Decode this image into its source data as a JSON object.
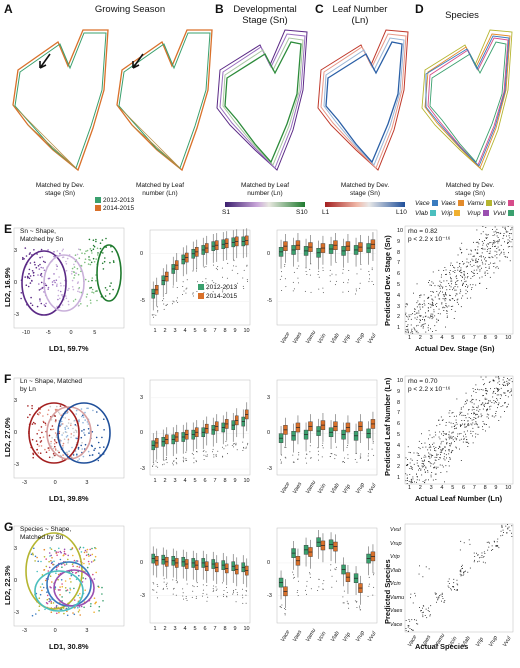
{
  "panels": {
    "A": {
      "letter": "A",
      "title": "Growing Season",
      "caption_left": "Matched by Dev. stage (Sn)",
      "caption_right": "Matched by Leaf number (Ln)",
      "legend": [
        {
          "label": "2012-2013",
          "color": "#3aa06e"
        },
        {
          "label": "2014-2015",
          "color": "#d9702a"
        }
      ]
    },
    "B": {
      "letter": "B",
      "title": "Developmental Stage (Sn)",
      "caption": "Matched by Leaf number (Ln)",
      "scale_left": "S1",
      "scale_right": "S10"
    },
    "C": {
      "letter": "C",
      "title": "Leaf Number (Ln)",
      "caption": "Matched by Dev. stage (Sn)",
      "scale_left": "L1",
      "scale_right": "L10"
    },
    "D": {
      "letter": "D",
      "title": "Species",
      "caption": "Matched by Dev. stage (Sn)",
      "legend": [
        {
          "label": "Vace",
          "color": "#3a7bbf"
        },
        {
          "label": "Vaes",
          "color": "#e28a2b"
        },
        {
          "label": "Vamu",
          "color": "#b5b530"
        },
        {
          "label": "Vcin",
          "color": "#d64c8a"
        },
        {
          "label": "Vlab",
          "color": "#4bbfbf"
        },
        {
          "label": "Vrip",
          "color": "#f0b030"
        },
        {
          "label": "Vrup",
          "color": "#9a4fb0"
        },
        {
          "label": "Vvul",
          "color": "#3aa06e"
        }
      ]
    }
  },
  "rows": {
    "E": {
      "letter": "E",
      "pca_label": "Sn ~ Shape, Matched by Sn",
      "pca_x": "LD1, 59.7%",
      "pca_y": "LD2, 16.9%",
      "box1_x": "Dev. Stage (Sn)",
      "box1_y": "LD1",
      "box2_x": "Species",
      "box2_y": "LD1",
      "box_legend": [
        "2012-2013",
        "2014-2015"
      ],
      "conf_x": "Actual Dev. Stage (Sn)",
      "conf_y": "Predicted Dev. Stage (Sn)",
      "rho": "rho = 0.82",
      "p": "p < 2.2 x 10⁻¹⁶"
    },
    "F": {
      "letter": "F",
      "pca_label": "Ln ~ Shape, Matched by Ln",
      "pca_x": "LD1, 39.8%",
      "pca_y": "LD2, 27.0%",
      "box1_x": "Leaf Number (Ln)",
      "box1_y": "LD1",
      "box2_x": "Species",
      "box2_y": "LD1",
      "conf_x": "Actual Leaf Number (Ln)",
      "conf_y": "Predicted Leaf Number (Ln)",
      "rho": "rho = 0.70",
      "p": "p < 2.2 x 10⁻¹⁶"
    },
    "G": {
      "letter": "G",
      "pca_label": "Species ~ Shape, Matched by Sn",
      "pca_x": "LD1, 30.8%",
      "pca_y": "LD2, 22.3%",
      "box1_x": "Dev. Stage (Sn)",
      "box1_y": "LD1",
      "box2_x": "Species",
      "box2_y": "LD1",
      "conf_x": "Actual Species",
      "conf_y": "Predicted Species"
    }
  },
  "species": [
    "Vace",
    "Vaes",
    "Vamu",
    "Vcin",
    "Vlab",
    "Vrip",
    "Vrup",
    "Vvul"
  ],
  "chart_data": [
    {
      "type": "box",
      "panel": "E-dev-stage",
      "categories": [
        "1",
        "2",
        "3",
        "4",
        "5",
        "6",
        "7",
        "8",
        "9",
        "10"
      ],
      "series": [
        {
          "name": "2012-2013",
          "values": [
            -4.2,
            -2.8,
            -1.6,
            -0.6,
            0,
            0.4,
            0.8,
            1.0,
            1.2,
            1.3
          ]
        },
        {
          "name": "2014-2015",
          "values": [
            -3.8,
            -2.4,
            -1.2,
            -0.4,
            0.2,
            0.6,
            0.9,
            1.1,
            1.3,
            1.4
          ]
        }
      ],
      "ylim": [
        -7.5,
        2.5
      ],
      "yticks": [
        -5,
        0
      ]
    },
    {
      "type": "box",
      "panel": "E-species",
      "categories": [
        "Vace",
        "Vaes",
        "Vamu",
        "Vcin",
        "Vlab",
        "Vrip",
        "Vrup",
        "Vvul"
      ],
      "series": [
        {
          "name": "2012-2013",
          "values": [
            0.2,
            0.4,
            0.3,
            0.1,
            0.5,
            0.3,
            0.4,
            0.6
          ]
        },
        {
          "name": "2014-2015",
          "values": [
            0.8,
            0.9,
            0.7,
            0.6,
            0.9,
            0.8,
            0.7,
            1.0
          ]
        }
      ],
      "ylim": [
        -7.5,
        2.5
      ],
      "yticks": [
        -5,
        0
      ]
    },
    {
      "type": "box",
      "panel": "F-leaf-number",
      "categories": [
        "1",
        "2",
        "3",
        "4",
        "5",
        "6",
        "7",
        "8",
        "9",
        "10"
      ],
      "series": [
        {
          "name": "2012-2013",
          "values": [
            -1.0,
            -0.7,
            -0.5,
            -0.3,
            -0.1,
            0.1,
            0.3,
            0.5,
            0.7,
            1.0
          ]
        },
        {
          "name": "2014-2015",
          "values": [
            -0.8,
            -0.5,
            -0.3,
            -0.1,
            0.1,
            0.4,
            0.6,
            0.8,
            1.1,
            1.6
          ]
        }
      ],
      "ylim": [
        -3.5,
        4.5
      ],
      "yticks": [
        -3,
        0,
        3
      ]
    },
    {
      "type": "box",
      "panel": "F-species",
      "categories": [
        "Vace",
        "Vaes",
        "Vamu",
        "Vcin",
        "Vlab",
        "Vrip",
        "Vrup",
        "Vvul"
      ],
      "series": [
        {
          "name": "2012-2013",
          "values": [
            -0.4,
            -0.2,
            -0.1,
            0.2,
            0.1,
            -0.1,
            -0.2,
            0.0
          ]
        },
        {
          "name": "2014-2015",
          "values": [
            0.3,
            0.5,
            0.6,
            0.7,
            0.6,
            0.5,
            0.6,
            0.8
          ]
        }
      ],
      "ylim": [
        -3.5,
        4.5
      ],
      "yticks": [
        -3,
        0,
        3
      ]
    },
    {
      "type": "box",
      "panel": "G-dev-stage",
      "categories": [
        "1",
        "2",
        "3",
        "4",
        "5",
        "6",
        "7",
        "8",
        "9",
        "10"
      ],
      "series": [
        {
          "name": "2012-2013",
          "values": [
            0.4,
            0.3,
            0.2,
            0.1,
            0.0,
            0.0,
            -0.1,
            -0.2,
            -0.3,
            -0.4
          ]
        },
        {
          "name": "2014-2015",
          "values": [
            0.2,
            0.1,
            0.0,
            -0.1,
            -0.2,
            -0.3,
            -0.4,
            -0.5,
            -0.6,
            -0.7
          ]
        }
      ],
      "ylim": [
        -5.5,
        3.2
      ],
      "yticks": [
        -3,
        0
      ]
    },
    {
      "type": "box",
      "panel": "G-species",
      "categories": [
        "Vace",
        "Vaes",
        "Vamu",
        "Vcin",
        "Vlab",
        "Vrip",
        "Vrup",
        "Vvul"
      ],
      "series": [
        {
          "name": "2012-2013",
          "values": [
            -1.8,
            0.9,
            1.2,
            1.9,
            1.7,
            -0.6,
            -1.4,
            0.4
          ]
        },
        {
          "name": "2014-2015",
          "values": [
            -2.6,
            0.2,
            1.0,
            1.6,
            1.5,
            -1.3,
            -2.3,
            0.6
          ]
        }
      ],
      "ylim": [
        -5.5,
        3.2
      ],
      "yticks": [
        -3,
        0
      ]
    },
    {
      "type": "scatter",
      "panel": "E-confusion",
      "x_label": "Actual Dev. Stage (Sn)",
      "y_label": "Predicted Dev. Stage (Sn)",
      "categories": [
        "1",
        "2",
        "3",
        "4",
        "5",
        "6",
        "7",
        "8",
        "9",
        "10"
      ]
    },
    {
      "type": "scatter",
      "panel": "F-confusion",
      "x_label": "Actual Leaf Number (Ln)",
      "y_label": "Predicted Leaf Number (Ln)",
      "categories": [
        "1",
        "2",
        "3",
        "4",
        "5",
        "6",
        "7",
        "8",
        "9",
        "10"
      ]
    },
    {
      "type": "scatter",
      "panel": "G-confusion",
      "x_label": "Actual Species",
      "y_label": "Predicted Species",
      "categories": [
        "Vace",
        "Vaes",
        "Vamu",
        "Vcin",
        "Vlab",
        "Vrip",
        "Vrup",
        "Vvul"
      ]
    }
  ],
  "axis_ticks": {
    "E_pca_x": [
      "-10",
      "-5",
      "0",
      "5"
    ],
    "E_pca_y": [
      "-3",
      "0",
      "3"
    ],
    "F_pca_x": [
      "-3",
      "0",
      "3"
    ],
    "F_pca_y": [
      "-3",
      "0",
      "3"
    ],
    "G_pca_x": [
      "-3",
      "0",
      "3"
    ],
    "G_pca_y": [
      "-3",
      "0",
      "3"
    ],
    "E_box1_x": [
      "1",
      "2",
      "3",
      "4",
      "5",
      "6",
      "7",
      "8",
      "9",
      "10"
    ],
    "conf_num": [
      "1",
      "2",
      "3",
      "4",
      "5",
      "6",
      "7",
      "8",
      "9",
      "10"
    ]
  }
}
